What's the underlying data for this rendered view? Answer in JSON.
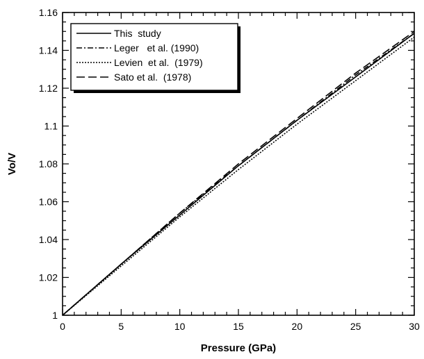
{
  "chart_data": {
    "type": "line",
    "xlabel": "Pressure  (GPa)",
    "ylabel": "Vo/V",
    "xlim": [
      0,
      30
    ],
    "ylim": [
      1,
      1.16
    ],
    "x_ticks": [
      "0",
      "5",
      "10",
      "15",
      "20",
      "25",
      "30"
    ],
    "y_ticks": [
      "1",
      "1.02",
      "1.04",
      "1.06",
      "1.08",
      "1.1",
      "1.12",
      "1.14",
      "1.16"
    ],
    "grid": false,
    "legend_position": "top-left",
    "series": [
      {
        "name": "This  study",
        "dash": "solid",
        "x": [
          0,
          5,
          10,
          15,
          20,
          25,
          30
        ],
        "values": [
          1.0,
          1.027,
          1.053,
          1.079,
          1.103,
          1.126,
          1.149
        ]
      },
      {
        "name": "Leger   et al. (1990)",
        "dash": "dash-dot",
        "x": [
          0,
          5,
          10,
          15,
          20,
          25,
          30
        ],
        "values": [
          1.0,
          1.027,
          1.054,
          1.079,
          1.103,
          1.127,
          1.149
        ]
      },
      {
        "name": "Levien  et al.  (1979)",
        "dash": "dotted",
        "x": [
          0,
          5,
          10,
          15,
          20,
          25,
          30
        ],
        "values": [
          1.0,
          1.026,
          1.052,
          1.077,
          1.101,
          1.124,
          1.147
        ]
      },
      {
        "name": "Sato et al.  (1978)",
        "dash": "long-dash",
        "x": [
          0,
          5,
          10,
          15,
          20,
          25,
          30
        ],
        "values": [
          1.0,
          1.027,
          1.054,
          1.08,
          1.104,
          1.128,
          1.15
        ]
      }
    ]
  }
}
